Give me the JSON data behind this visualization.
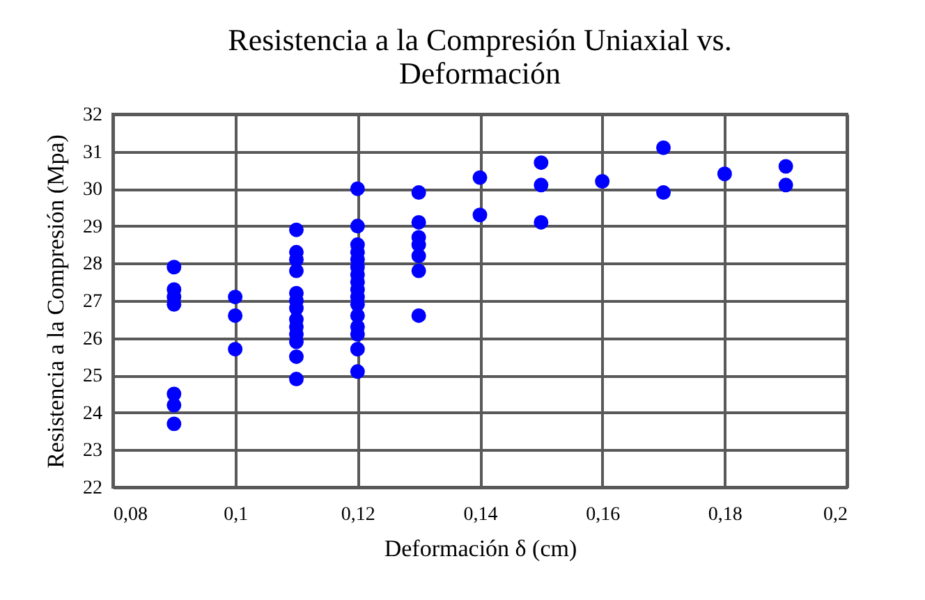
{
  "chart_data": {
    "type": "scatter",
    "title": "Resistencia a la Compresión Uniaxial vs. Deformación",
    "xlabel": "Deformación δ (cm)",
    "ylabel": "Resistencia a la Compresión (Mpa)",
    "series": [
      {
        "color": "#0000ff",
        "x": [
          0.09,
          0.09,
          0.09,
          0.09,
          0.09,
          0.09,
          0.09,
          0.1,
          0.1,
          0.1,
          0.11,
          0.11,
          0.11,
          0.11,
          0.11,
          0.11,
          0.11,
          0.11,
          0.11,
          0.11,
          0.11,
          0.11,
          0.11,
          0.12,
          0.12,
          0.12,
          0.12,
          0.12,
          0.12,
          0.12,
          0.12,
          0.12,
          0.12,
          0.12,
          0.12,
          0.12,
          0.12,
          0.12,
          0.12,
          0.13,
          0.13,
          0.13,
          0.13,
          0.13,
          0.13,
          0.13,
          0.14,
          0.14,
          0.15,
          0.15,
          0.15,
          0.16,
          0.17,
          0.17,
          0.18,
          0.19,
          0.19
        ],
        "values": [
          27.9,
          27.3,
          27.1,
          26.9,
          24.5,
          24.2,
          23.7,
          27.1,
          26.6,
          25.7,
          28.9,
          28.3,
          28.1,
          27.8,
          27.2,
          27.0,
          26.8,
          26.5,
          26.3,
          26.1,
          25.9,
          25.5,
          24.9,
          30.0,
          29.0,
          28.5,
          28.3,
          28.1,
          27.9,
          27.7,
          27.5,
          27.3,
          27.1,
          26.9,
          26.6,
          26.3,
          26.1,
          25.7,
          25.1,
          29.9,
          29.1,
          28.7,
          28.5,
          28.2,
          27.8,
          26.6,
          30.3,
          29.3,
          30.7,
          30.1,
          29.1,
          30.2,
          31.1,
          29.9,
          30.4,
          30.6,
          30.1
        ]
      }
    ],
    "xlim": [
      0.08,
      0.2
    ],
    "xticks": [
      {
        "value": 0.08,
        "label": "0,08"
      },
      {
        "value": 0.1,
        "label": "0,1"
      },
      {
        "value": 0.12,
        "label": "0,12"
      },
      {
        "value": 0.14,
        "label": "0,14"
      },
      {
        "value": 0.16,
        "label": "0,16"
      },
      {
        "value": 0.18,
        "label": "0,18"
      },
      {
        "value": 0.2,
        "label": "0,2"
      }
    ],
    "ylim": [
      22,
      32
    ],
    "yticks": [
      22,
      23,
      24,
      25,
      26,
      27,
      28,
      29,
      30,
      31,
      32
    ],
    "grid": true,
    "marker": "circle"
  }
}
